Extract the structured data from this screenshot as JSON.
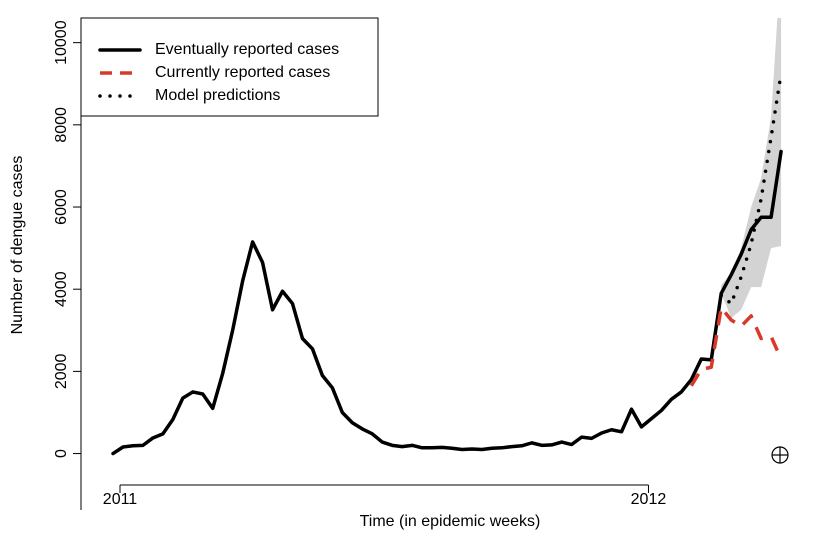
{
  "chart_data": {
    "type": "line",
    "ylabel": "Number of dengue cases",
    "xlabel": "Time (in epidemic weeks)",
    "categories": [
      "2011",
      null,
      null,
      null,
      null,
      null,
      null,
      null,
      null,
      null,
      null,
      null,
      null,
      null,
      null,
      null,
      null,
      null,
      null,
      null,
      null,
      null,
      null,
      null,
      null,
      null,
      null,
      null,
      null,
      null,
      null,
      null,
      null,
      null,
      null,
      null,
      null,
      null,
      null,
      null,
      null,
      null,
      null,
      null,
      null,
      null,
      null,
      null,
      null,
      null,
      null,
      null,
      null,
      "2012",
      null,
      null,
      null,
      null,
      null,
      null,
      null,
      null,
      null,
      null,
      null,
      null,
      null,
      null
    ],
    "ylim": [
      -400,
      10600
    ],
    "yticks": [
      0,
      2000,
      4000,
      6000,
      8000,
      10000
    ],
    "legend": "top-left",
    "series": [
      {
        "name": "Eventually reported cases",
        "color": "#000000",
        "style": "solid",
        "values": [
          0,
          160,
          190,
          200,
          380,
          480,
          830,
          1350,
          1500,
          1450,
          1100,
          1950,
          3000,
          4200,
          5150,
          4650,
          3500,
          3950,
          3650,
          2800,
          2550,
          1900,
          1600,
          1000,
          750,
          600,
          480,
          280,
          200,
          170,
          200,
          140,
          140,
          150,
          130,
          100,
          110,
          100,
          130,
          140,
          170,
          190,
          260,
          200,
          210,
          280,
          220,
          400,
          370,
          500,
          580,
          530,
          1080,
          650,
          850,
          1050,
          1320,
          1500,
          1800,
          2300,
          2280,
          3900,
          4350,
          4850,
          5450,
          5750,
          5750,
          7350
        ]
      },
      {
        "name": "Currently reported cases",
        "color": "#d9392a",
        "style": "dashed",
        "values": [
          null,
          null,
          null,
          null,
          null,
          null,
          null,
          null,
          null,
          null,
          null,
          null,
          null,
          null,
          null,
          null,
          null,
          null,
          null,
          null,
          null,
          null,
          null,
          null,
          null,
          null,
          null,
          null,
          null,
          null,
          null,
          null,
          null,
          null,
          null,
          null,
          null,
          null,
          null,
          null,
          null,
          null,
          null,
          null,
          null,
          null,
          null,
          null,
          null,
          null,
          null,
          null,
          null,
          null,
          null,
          null,
          null,
          null,
          1650,
          2050,
          2100,
          3550,
          3250,
          3100,
          3350,
          2800,
          2850,
          2300
        ]
      },
      {
        "name": "Model predictions",
        "color": "#000000",
        "style": "dotted",
        "values": [
          null,
          null,
          null,
          null,
          null,
          null,
          null,
          null,
          null,
          null,
          null,
          null,
          null,
          null,
          null,
          null,
          null,
          null,
          null,
          null,
          null,
          null,
          null,
          null,
          null,
          null,
          null,
          null,
          null,
          null,
          null,
          null,
          null,
          null,
          null,
          null,
          null,
          null,
          null,
          null,
          null,
          null,
          null,
          null,
          null,
          null,
          null,
          null,
          null,
          null,
          null,
          null,
          null,
          null,
          null,
          null,
          null,
          null,
          null,
          null,
          null,
          3850,
          3650,
          4300,
          5100,
          6200,
          7700,
          9250
        ]
      }
    ],
    "interval": {
      "color": "#d3d3d3",
      "lower": [
        null,
        null,
        null,
        null,
        null,
        null,
        null,
        null,
        null,
        null,
        null,
        null,
        null,
        null,
        null,
        null,
        null,
        null,
        null,
        null,
        null,
        null,
        null,
        null,
        null,
        null,
        null,
        null,
        null,
        null,
        null,
        null,
        null,
        null,
        null,
        null,
        null,
        null,
        null,
        null,
        null,
        null,
        null,
        null,
        null,
        null,
        null,
        null,
        null,
        null,
        null,
        null,
        null,
        null,
        null,
        null,
        null,
        null,
        null,
        null,
        null,
        3900,
        3300,
        3500,
        4050,
        4050,
        5000,
        5050
      ],
      "upper": [
        null,
        null,
        null,
        null,
        null,
        null,
        null,
        null,
        null,
        null,
        null,
        null,
        null,
        null,
        null,
        null,
        null,
        null,
        null,
        null,
        null,
        null,
        null,
        null,
        null,
        null,
        null,
        null,
        null,
        null,
        null,
        null,
        null,
        null,
        null,
        null,
        null,
        null,
        null,
        null,
        null,
        null,
        null,
        null,
        null,
        null,
        null,
        null,
        null,
        null,
        null,
        null,
        null,
        null,
        null,
        null,
        null,
        null,
        null,
        null,
        null,
        4100,
        4400,
        5000,
        6000,
        6700,
        8200,
        12000
      ]
    }
  }
}
